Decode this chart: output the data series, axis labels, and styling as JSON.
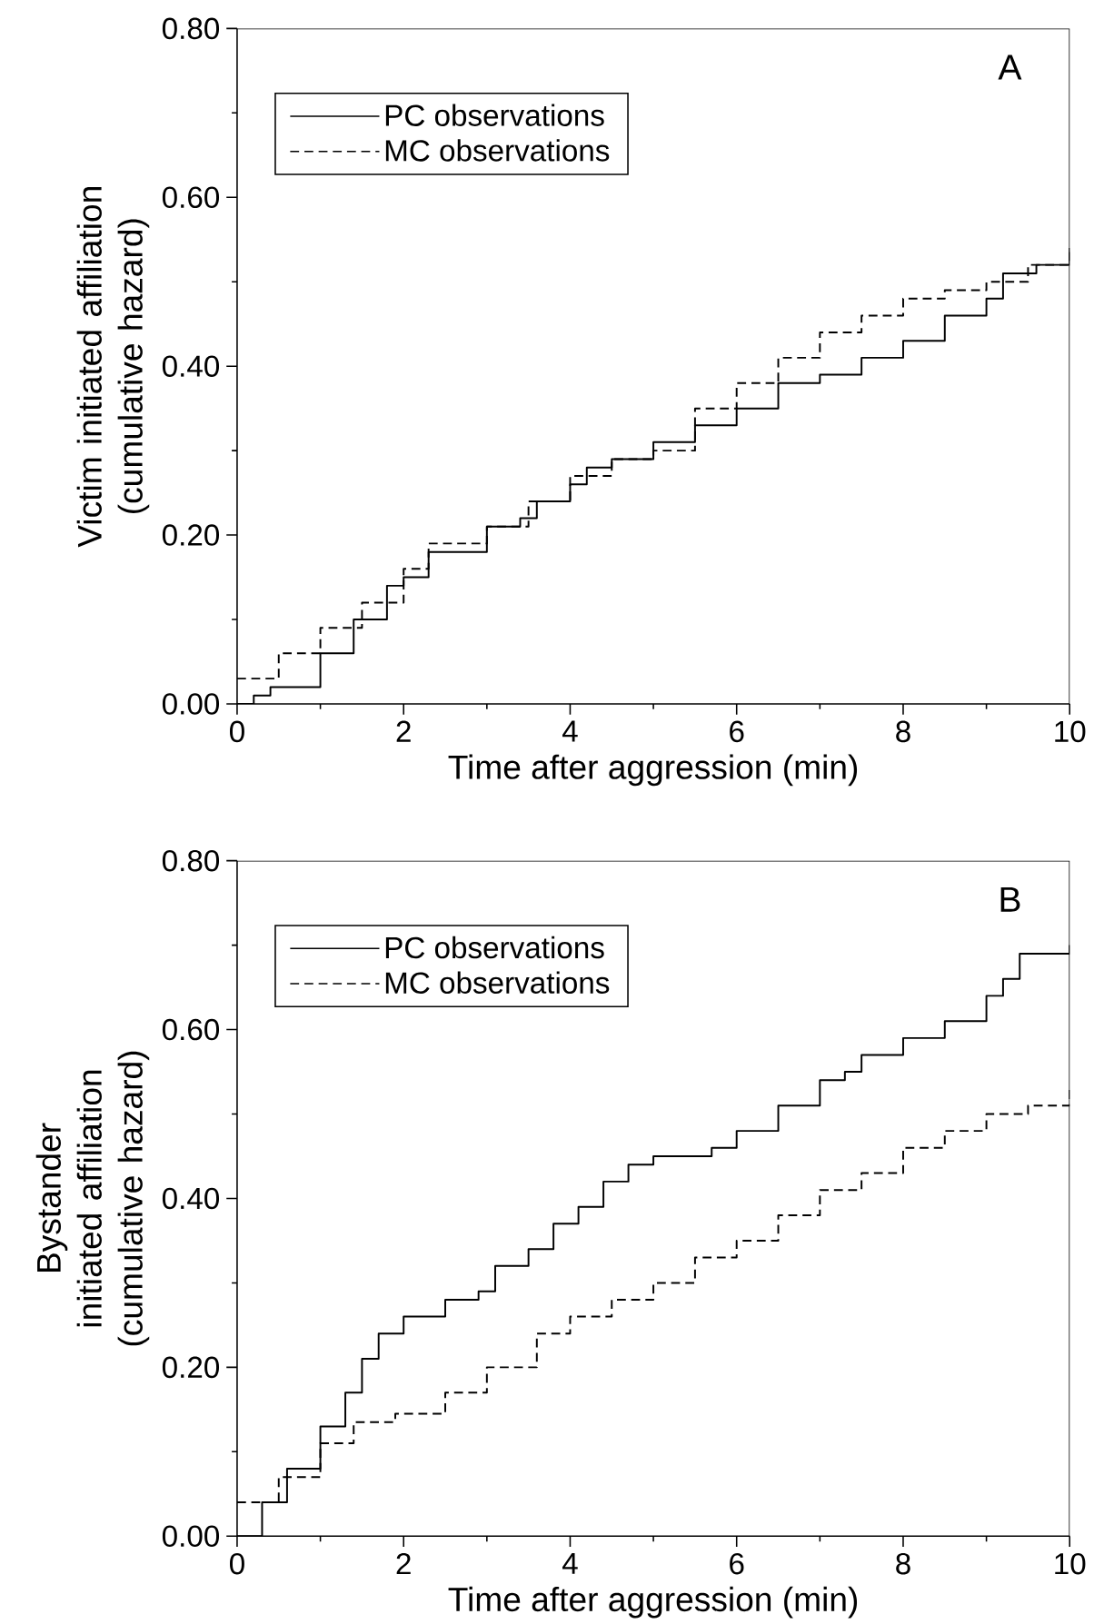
{
  "chart_data": [
    {
      "type": "step",
      "xlabel": "Time after aggression (min)",
      "ylabel": "Victim initiated affiliation (cumulative hazard)",
      "annotations": [
        "A"
      ],
      "legend": "top left",
      "xlim": [
        0,
        10
      ],
      "ylim": [
        0,
        0.8
      ],
      "xticks": [
        0,
        2,
        4,
        6,
        8,
        10
      ],
      "yticks": [
        {
          "value": 0,
          "label": "0.00"
        },
        {
          "value": 0.2,
          "label": "0.20"
        },
        {
          "value": 0.4,
          "label": "0.40"
        },
        {
          "value": 0.6,
          "label": "0.60"
        },
        {
          "value": 0.8,
          "label": "0.80"
        }
      ],
      "series": [
        {
          "name": "PC observations",
          "color": "#000000",
          "line_style": "solid",
          "x": [
            0,
            0.2,
            0.4,
            0.6,
            1,
            1.4,
            1.8,
            2,
            2.3,
            3,
            3.4,
            3.6,
            4,
            4.2,
            4.5,
            5,
            5.5,
            6,
            6.5,
            7,
            7.5,
            8,
            8.5,
            9,
            9.2,
            9.6,
            10
          ],
          "values": [
            0,
            0.01,
            0.02,
            0.02,
            0.06,
            0.1,
            0.14,
            0.15,
            0.18,
            0.21,
            0.22,
            0.24,
            0.26,
            0.28,
            0.29,
            0.31,
            0.33,
            0.35,
            0.38,
            0.39,
            0.41,
            0.43,
            0.46,
            0.48,
            0.51,
            0.52,
            0.54
          ]
        },
        {
          "name": "MC observations",
          "color": "#000000",
          "line_style": "dashed",
          "x": [
            0,
            0.5,
            1,
            1.5,
            2,
            2.3,
            3,
            3.5,
            4,
            4.5,
            5,
            5.5,
            6,
            6.5,
            7,
            7.5,
            8,
            8.5,
            9,
            9.5,
            10
          ],
          "values": [
            0.03,
            0.06,
            0.09,
            0.12,
            0.16,
            0.19,
            0.21,
            0.24,
            0.27,
            0.29,
            0.3,
            0.35,
            0.38,
            0.41,
            0.44,
            0.46,
            0.48,
            0.49,
            0.5,
            0.52,
            0.54
          ]
        }
      ]
    },
    {
      "type": "step",
      "xlabel": "Time after aggression (min)",
      "ylabel": "Bystander initiated affiliation (cumulative hazard)",
      "annotations": [
        "B"
      ],
      "legend": "top left",
      "xlim": [
        0,
        10
      ],
      "ylim": [
        0,
        0.8
      ],
      "xticks": [
        0,
        2,
        4,
        6,
        8,
        10
      ],
      "yticks": [
        {
          "value": 0,
          "label": "0.00"
        },
        {
          "value": 0.2,
          "label": "0.20"
        },
        {
          "value": 0.4,
          "label": "0.40"
        },
        {
          "value": 0.6,
          "label": "0.60"
        },
        {
          "value": 0.8,
          "label": "0.80"
        }
      ],
      "series": [
        {
          "name": "PC observations",
          "color": "#000000",
          "line_style": "solid",
          "x": [
            0,
            0.3,
            0.6,
            1,
            1.3,
            1.5,
            1.7,
            2,
            2.5,
            2.9,
            3.1,
            3.5,
            3.8,
            4.1,
            4.4,
            4.7,
            5,
            5.7,
            6,
            6.5,
            7,
            7.3,
            7.5,
            8,
            8.5,
            9,
            9.2,
            9.4,
            9.8,
            10
          ],
          "values": [
            0,
            0.04,
            0.08,
            0.13,
            0.17,
            0.21,
            0.24,
            0.26,
            0.28,
            0.29,
            0.32,
            0.34,
            0.37,
            0.39,
            0.42,
            0.44,
            0.45,
            0.46,
            0.48,
            0.51,
            0.54,
            0.55,
            0.57,
            0.59,
            0.61,
            0.64,
            0.66,
            0.69,
            0.69,
            0.7
          ]
        },
        {
          "name": "MC observations",
          "color": "#000000",
          "line_style": "dashed",
          "x": [
            0,
            0.5,
            1,
            1.4,
            1.9,
            2.5,
            3,
            3.2,
            3.6,
            4,
            4.5,
            5,
            5.5,
            5.8,
            6,
            6.5,
            7,
            7.5,
            8,
            8.5,
            9,
            9.5,
            10
          ],
          "values": [
            0.04,
            0.07,
            0.11,
            0.135,
            0.145,
            0.17,
            0.2,
            0.2,
            0.24,
            0.26,
            0.28,
            0.3,
            0.33,
            0.33,
            0.35,
            0.38,
            0.41,
            0.43,
            0.46,
            0.48,
            0.5,
            0.51,
            0.53
          ]
        }
      ]
    }
  ]
}
